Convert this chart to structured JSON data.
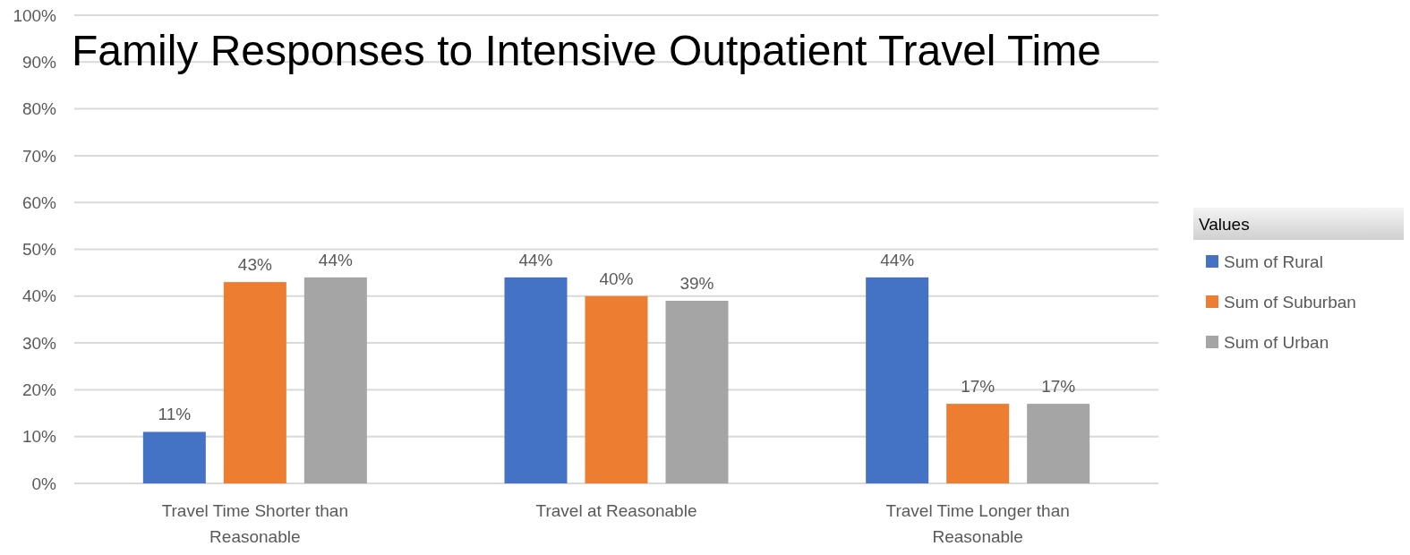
{
  "chart_data": {
    "type": "bar",
    "title": "Family Responses to Intensive Outpatient Travel Time",
    "categories": [
      "Travel Time Shorter than Reasonable",
      "Travel at Reasonable",
      "Travel Time Longer than Reasonable"
    ],
    "series": [
      {
        "name": "Sum of Rural",
        "color": "#4472c4",
        "values": [
          11,
          44,
          44
        ],
        "value_labels": [
          "11%",
          "44%",
          "44%"
        ]
      },
      {
        "name": "Sum of Suburban",
        "color": "#ed7d31",
        "values": [
          43,
          40,
          17
        ],
        "value_labels": [
          "43%",
          "40%",
          "17%"
        ]
      },
      {
        "name": "Sum of Urban",
        "color": "#a5a5a5",
        "values": [
          44,
          39,
          17
        ],
        "value_labels": [
          "44%",
          "39%",
          "17%"
        ]
      }
    ],
    "ylim": [
      0,
      100
    ],
    "yticks": [
      {
        "value": 0,
        "label": "0%"
      },
      {
        "value": 10,
        "label": "10%"
      },
      {
        "value": 20,
        "label": "20%"
      },
      {
        "value": 30,
        "label": "30%"
      },
      {
        "value": 40,
        "label": "40%"
      },
      {
        "value": 50,
        "label": "50%"
      },
      {
        "value": 60,
        "label": "60%"
      },
      {
        "value": 70,
        "label": "70%"
      },
      {
        "value": 80,
        "label": "80%"
      },
      {
        "value": 90,
        "label": "90%"
      },
      {
        "value": 100,
        "label": "100%"
      }
    ],
    "grid": "y",
    "legend": "right",
    "legend_title": "Values"
  }
}
